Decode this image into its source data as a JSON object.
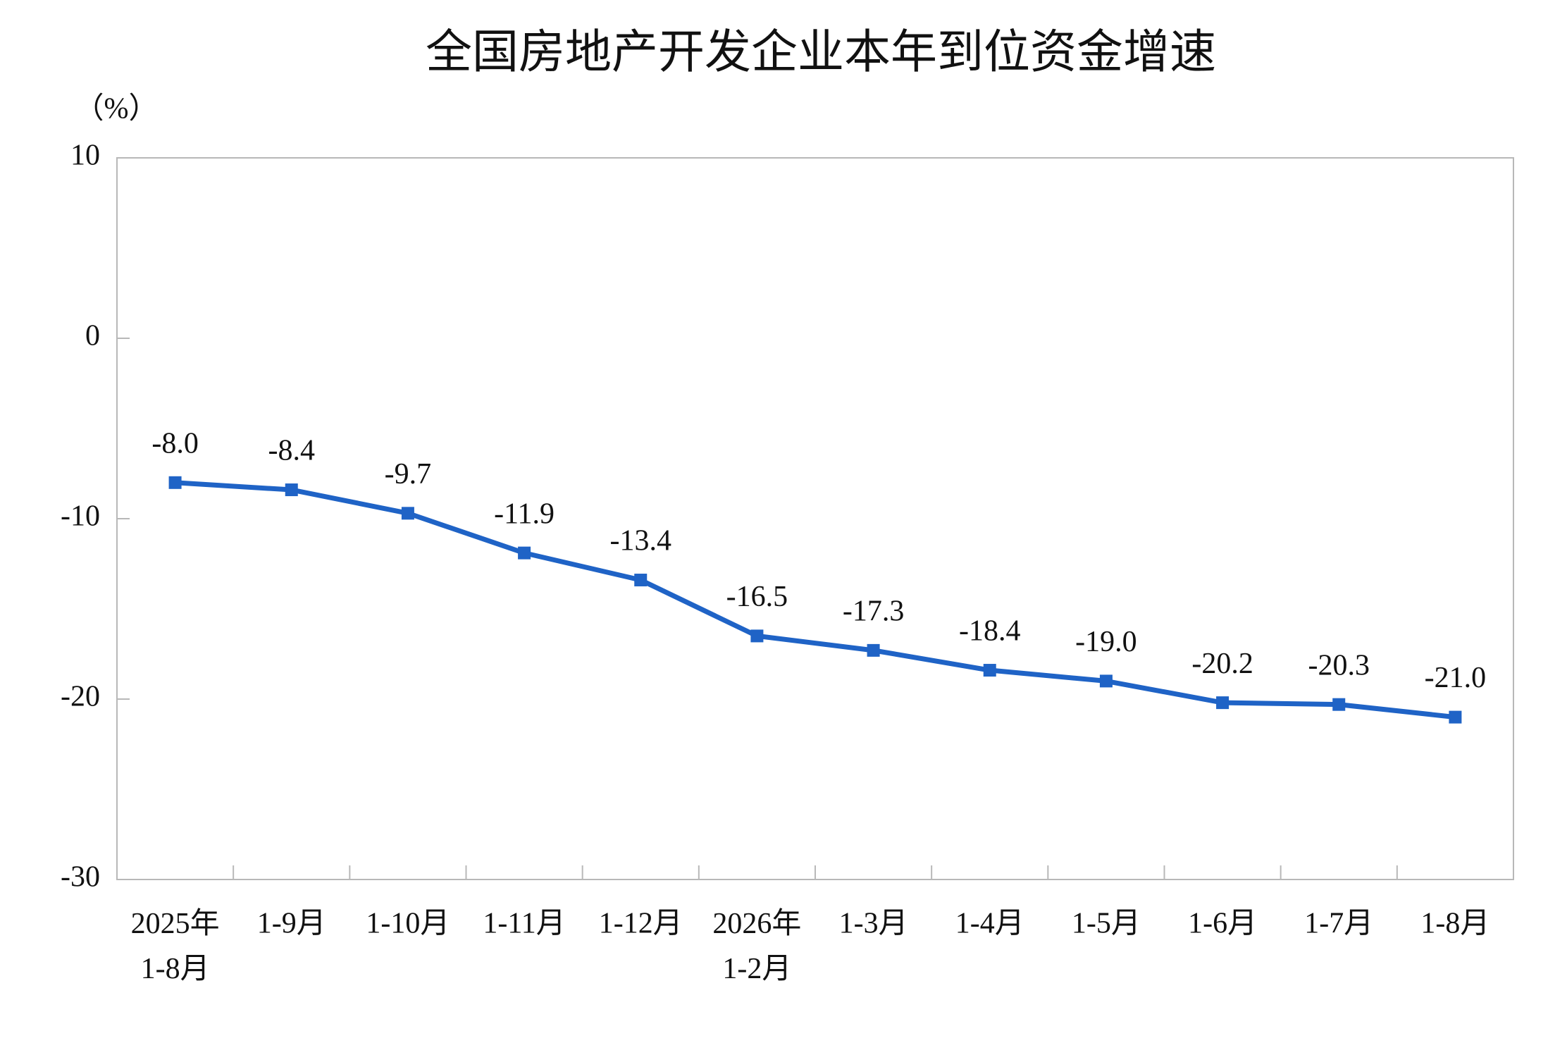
{
  "chart_data": {
    "type": "line",
    "title": "全国房地产开发企业本年到位资金增速",
    "y_label": "（%）",
    "categories": [
      "2025年\n1-8月",
      "1-9月",
      "1-10月",
      "1-11月",
      "1-12月",
      "2026年\n1-2月",
      "1-3月",
      "1-4月",
      "1-5月",
      "1-6月",
      "1-7月",
      "1-8月"
    ],
    "series": [
      {
        "name": "本年到位资金增速",
        "color": "#1f63c6",
        "values": [
          -8.0,
          -8.4,
          -9.7,
          -11.9,
          -13.4,
          -16.5,
          -17.3,
          -18.4,
          -19.0,
          -20.2,
          -20.3,
          -21.0
        ],
        "value_labels": [
          "-8.0",
          "-8.4",
          "-9.7",
          "-11.9",
          "-13.4",
          "-16.5",
          "-17.3",
          "-18.4",
          "-19.0",
          "-20.2",
          "-20.3",
          "-21.0"
        ]
      }
    ],
    "ylim": [
      -30,
      10
    ],
    "yticks": [
      10,
      0,
      -10,
      -20,
      -30
    ],
    "grid": false
  }
}
